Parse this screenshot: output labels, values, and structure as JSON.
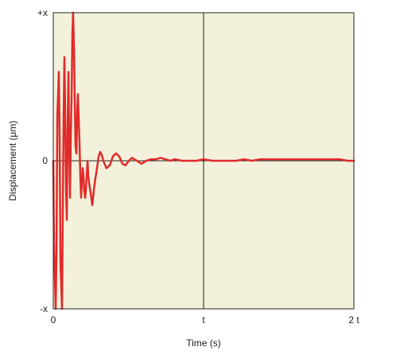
{
  "chart_data": {
    "type": "line",
    "title": "",
    "xlabel": "Time (s)",
    "ylabel": "Displacement (μm)",
    "x_ticks": [
      {
        "value": 0,
        "label": "0"
      },
      {
        "value": 1,
        "label": "t"
      },
      {
        "value": 2,
        "label": "2 t"
      }
    ],
    "y_ticks": [
      {
        "value": 1,
        "label": "+x"
      },
      {
        "value": 0,
        "label": "0"
      },
      {
        "value": -1,
        "label": "-x"
      }
    ],
    "xlim": [
      0,
      2
    ],
    "ylim": [
      -1,
      1
    ],
    "grid": "crosshair at x = t and y = 0",
    "colors": {
      "plot_background": "#F3F1DC",
      "series": "#E02B2B",
      "axis": "#222222"
    },
    "series": [
      {
        "name": "",
        "x": [
          0.0,
          0.005,
          0.016,
          0.021,
          0.027,
          0.037,
          0.042,
          0.048,
          0.058,
          0.063,
          0.069,
          0.074,
          0.079,
          0.085,
          0.09,
          0.095,
          0.101,
          0.106,
          0.111,
          0.117,
          0.122,
          0.127,
          0.132,
          0.138,
          0.143,
          0.148,
          0.154,
          0.159,
          0.164,
          0.169,
          0.175,
          0.18,
          0.185,
          0.19,
          0.196,
          0.201,
          0.206,
          0.212,
          0.217,
          0.222,
          0.228,
          0.233,
          0.238,
          0.249,
          0.259,
          0.27,
          0.28,
          0.291,
          0.302,
          0.312,
          0.323,
          0.333,
          0.354,
          0.376,
          0.397,
          0.418,
          0.439,
          0.46,
          0.481,
          0.503,
          0.524,
          0.556,
          0.587,
          0.619,
          0.651,
          0.683,
          0.714,
          0.746,
          0.778,
          0.81,
          0.857,
          0.899,
          0.952,
          1.0,
          1.058,
          1.111,
          1.164,
          1.217,
          1.27,
          1.323,
          1.376,
          1.429,
          1.481,
          1.534,
          1.587,
          1.64,
          1.693,
          1.746,
          1.799,
          1.852,
          1.905,
          1.958,
          2.0
        ],
        "y": [
          0.0,
          -0.55,
          -1.0,
          -0.65,
          0.3,
          0.6,
          0.2,
          -0.7,
          -1.0,
          -0.4,
          0.3,
          0.7,
          0.35,
          -0.2,
          -0.4,
          0.2,
          0.6,
          0.1,
          -0.25,
          0.2,
          0.45,
          0.85,
          1.0,
          0.75,
          0.4,
          0.1,
          0.05,
          0.35,
          0.45,
          0.3,
          0.1,
          -0.1,
          -0.25,
          -0.15,
          -0.05,
          -0.1,
          -0.2,
          -0.25,
          -0.2,
          -0.1,
          0.0,
          -0.1,
          -0.15,
          -0.22,
          -0.3,
          -0.2,
          -0.12,
          -0.05,
          0.03,
          0.06,
          0.04,
          0.0,
          -0.05,
          -0.03,
          0.03,
          0.05,
          0.03,
          -0.02,
          -0.03,
          0.0,
          0.02,
          0.0,
          -0.02,
          0.0,
          0.01,
          0.01,
          0.02,
          0.01,
          0.0,
          0.01,
          0.0,
          0.0,
          0.0,
          0.01,
          0.0,
          0.0,
          0.0,
          0.0,
          0.01,
          0.0,
          0.01,
          0.01,
          0.01,
          0.01,
          0.01,
          0.01,
          0.01,
          0.01,
          0.01,
          0.01,
          0.01,
          0.0,
          0.0
        ]
      }
    ]
  }
}
